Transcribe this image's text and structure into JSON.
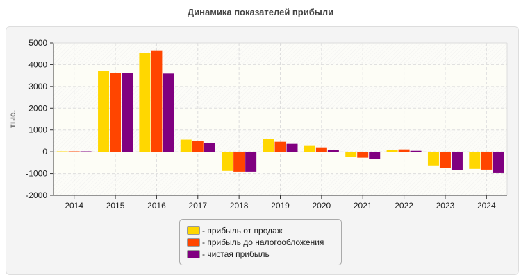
{
  "chart_data": {
    "type": "bar",
    "title": "Динамика показателей прибыли",
    "ylabel": "тыс.",
    "xlabel": "",
    "ylim": [
      -2000,
      5000
    ],
    "yticks": [
      5000,
      4000,
      3000,
      2000,
      1000,
      0,
      -1000,
      -2000
    ],
    "grid": true,
    "legend_position": "bottom",
    "categories": [
      "2014",
      "2015",
      "2016",
      "2017",
      "2018",
      "2019",
      "2020",
      "2021",
      "2022",
      "2023",
      "2024"
    ],
    "series": [
      {
        "name": "- прибыль от продаж",
        "color": "#FFD700",
        "values": [
          20,
          3720,
          4530,
          560,
          -880,
          590,
          270,
          -240,
          75,
          -625,
          -785
        ]
      },
      {
        "name": "- прибыль до налогообложения",
        "color": "#FF4500",
        "values": [
          20,
          3620,
          4660,
          495,
          -915,
          460,
          205,
          -270,
          110,
          -755,
          -820
        ]
      },
      {
        "name": "- чистая прибыль",
        "color": "#800080",
        "values": [
          20,
          3620,
          3590,
          400,
          -915,
          365,
          75,
          -345,
          45,
          -850,
          -980
        ]
      }
    ]
  }
}
